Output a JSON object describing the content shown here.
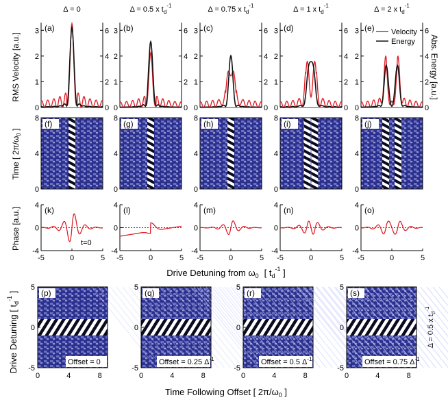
{
  "colors": {
    "velocity": "#e0202a",
    "energy": "#111111",
    "pattern_dark": "#2b2f8f",
    "pattern_mid": "#6f78c4",
    "pattern_light": "#e8ebff",
    "band_dark": "#0b0b20",
    "band_light": "#ffffff"
  },
  "column_titles": [
    "Δ = 0",
    "Δ = 0.5 x t",
    "Δ = 0.75 x t",
    "Δ = 1 x t",
    "Δ = 2 x t"
  ],
  "title_sub": "d",
  "title_sup": "-1",
  "legend": {
    "velocity": "Velocity",
    "energy": "Energy"
  },
  "row_labels": {
    "velocity": "RMS Velocity [a.u.]",
    "energy": "Abs. Energy [a.u.]",
    "time": "Time [ 2π/ω",
    "time_sub": "0",
    "time_end": " ]",
    "phase": "Phase [a.u.]"
  },
  "x_detuning_label": "Drive Detuning from ω",
  "x_detuning_sub": "0",
  "x_detuning_bracket": "[ t",
  "x_detuning_bracket_sub": "d",
  "x_detuning_bracket_sup": "-1",
  "x_detuning_end": " ]",
  "bottom_y_label": "Drive Detuning [ t",
  "bottom_y_sub": "d",
  "bottom_y_sup": "-1",
  "bottom_y_end": " ]",
  "bottom_x_label": "Time Following Offset [ 2π/ω",
  "bottom_x_sub": "0",
  "bottom_x_end": " ]",
  "right_side_label": "Δ = 0.5 x t",
  "right_side_sub": "d",
  "right_side_sup": "-1",
  "t0_label": "t=0",
  "offset_labels": [
    "Offset = 0",
    "Offset = 0.25 Δ",
    "Offset = 0.5 Δ",
    "Offset = 0.75 Δ"
  ],
  "offset_sup": "-1",
  "panel_letters_top": [
    "(a)",
    "(b)",
    "(c)",
    "(d)",
    "(e)"
  ],
  "panel_letters_mid": [
    "(f)",
    "(g)",
    "(h)",
    "(i)",
    "(j)"
  ],
  "panel_letters_phase": [
    "(k)",
    "(l)",
    "(m)",
    "(n)",
    "(o)"
  ],
  "panel_letters_bottom": [
    "(p)",
    "(q)",
    "(r)",
    "(s)"
  ],
  "chart_data": [
    {
      "type": "line",
      "name": "rms-velocity-and-energy-vs-detuning",
      "x_range": [
        -5,
        5
      ],
      "velocity_ylim": [
        0,
        3.3
      ],
      "velocity_ticks": [
        "0",
        "1",
        "2",
        "3"
      ],
      "energy_ylim": [
        0,
        6.6
      ],
      "energy_ticks": [
        "0",
        "2",
        "4",
        "6"
      ],
      "series": [
        {
          "name": "Velocity",
          "panels": [
            {
              "delta": 0,
              "peaks": [
                [
                  0,
                  3.1
                ]
              ],
              "sidelobe": 0.55
            },
            {
              "delta": 0.5,
              "peaks": [
                [
                  0,
                  2.0
                ]
              ],
              "sidelobe": 0.45
            },
            {
              "delta": 0.75,
              "peaks": [
                [
                  -0.4,
                  1.4
                ],
                [
                  0.4,
                  1.4
                ]
              ],
              "sidelobe": 0.45
            },
            {
              "delta": 1,
              "peaks": [
                [
                  -0.6,
                  1.7
                ],
                [
                  0.6,
                  1.7
                ]
              ],
              "sidelobe": 0.45
            },
            {
              "delta": 2,
              "peaks": [
                [
                  -1.0,
                  1.6
                ],
                [
                  1.0,
                  1.6
                ]
              ],
              "sidelobe": 0.45
            }
          ]
        },
        {
          "name": "Energy",
          "panels": [
            {
              "delta": 0,
              "peaks": [
                [
                  0,
                  6.2
                ]
              ],
              "sidelobe": 0.25
            },
            {
              "delta": 0.5,
              "peaks": [
                [
                  0,
                  5.1
                ]
              ],
              "sidelobe": 0.15
            },
            {
              "delta": 0.75,
              "peaks": [
                [
                  0,
                  4.0
                ]
              ],
              "sidelobe": 0.15
            },
            {
              "delta": 1,
              "peaks": [
                [
                  -0.35,
                  3.1
                ],
                [
                  0.35,
                  3.1
                ]
              ],
              "sidelobe": 0.15
            },
            {
              "delta": 2,
              "peaks": [
                [
                  -0.9,
                  3.2
                ],
                [
                  0.9,
                  3.2
                ]
              ],
              "sidelobe": 0.15
            }
          ]
        }
      ]
    },
    {
      "type": "heatmap",
      "name": "time-vs-detuning",
      "x_range": [
        -5,
        5
      ],
      "y_range": [
        0,
        8
      ],
      "y_ticks": [
        "0",
        "4",
        "8"
      ],
      "bands": [
        [
          0
        ],
        [
          0
        ],
        [
          0
        ],
        [
          -0.6,
          0.6
        ],
        [
          -1.0,
          1.0
        ]
      ]
    },
    {
      "type": "line",
      "name": "phase-vs-detuning",
      "x_range": [
        -5,
        5
      ],
      "x_ticks": [
        "-5",
        "0",
        "5"
      ],
      "ylim": [
        -4,
        4
      ],
      "y_ticks": [
        "4",
        "0",
        "-4"
      ],
      "series": [
        {
          "name": "phase",
          "panels": [
            {
              "delta": 0,
              "amp": 3.5
            },
            {
              "delta": 0.5,
              "amp": 1.6
            },
            {
              "delta": 0.75,
              "amp": 1.7
            },
            {
              "delta": 1,
              "amp": 2.0
            },
            {
              "delta": 2,
              "amp": 1.8
            }
          ]
        }
      ]
    },
    {
      "type": "heatmap",
      "name": "drive-detuning-vs-time-following-offset",
      "x_range": [
        0,
        9
      ],
      "x_ticks": [
        "0",
        "4",
        "8"
      ],
      "y_range": [
        -5,
        5
      ],
      "y_ticks": [
        "5",
        "0",
        "-5"
      ],
      "offsets": [
        0,
        0.25,
        0.5,
        0.75
      ]
    }
  ]
}
